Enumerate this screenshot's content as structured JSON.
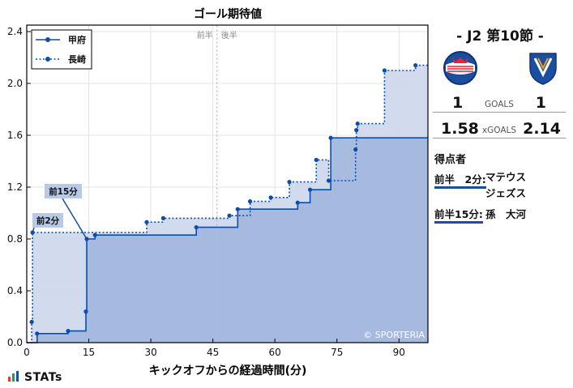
{
  "chart_data": {
    "type": "line",
    "title": "ゴール期待値",
    "xlabel": "キックオフからの経過時間(分)",
    "ylabel": "",
    "xlim": [
      0,
      97
    ],
    "ylim": [
      0,
      2.45
    ],
    "x_ticks": [
      0,
      15,
      30,
      45,
      60,
      75,
      90
    ],
    "y_ticks": [
      0.0,
      0.4,
      0.8,
      1.2,
      1.6,
      2.0,
      2.4
    ],
    "x_tick_labels": [
      "0",
      "15",
      "30",
      "45",
      "60",
      "75",
      "90"
    ],
    "y_tick_labels": [
      "0.0",
      "0.4",
      "0.8",
      "1.2",
      "1.6",
      "2.0",
      "2.4"
    ],
    "halftime": 46,
    "halftime_labels": {
      "first": "前半",
      "second": "後半"
    },
    "grid": true,
    "legend_position": "top-left",
    "watermark": "© SPORTERIA",
    "series": [
      {
        "name": "甲府",
        "style": "solid",
        "color": "#0a4db0",
        "fill": "#a3b8de",
        "points": [
          [
            2.5,
            0.07
          ],
          [
            10,
            0.09
          ],
          [
            14.3,
            0.24
          ],
          [
            14.5,
            0.8
          ],
          [
            16.5,
            0.83
          ],
          [
            41,
            0.89
          ],
          [
            51,
            1.03
          ],
          [
            65.5,
            1.08
          ],
          [
            68.5,
            1.18
          ],
          [
            73.5,
            1.58
          ]
        ]
      },
      {
        "name": "長崎",
        "style": "dotted",
        "color": "#0a4db0",
        "fill": "#cfd9ec",
        "points": [
          [
            1.2,
            0.16
          ],
          [
            1.4,
            0.85
          ],
          [
            29,
            0.93
          ],
          [
            33,
            0.96
          ],
          [
            49,
            0.98
          ],
          [
            54,
            1.09
          ],
          [
            59,
            1.12
          ],
          [
            63.5,
            1.24
          ],
          [
            70,
            1.41
          ],
          [
            73,
            1.25
          ],
          [
            79.5,
            1.49
          ],
          [
            79.7,
            1.64
          ],
          [
            80,
            1.69
          ],
          [
            86.5,
            2.1
          ],
          [
            94,
            2.14
          ]
        ]
      }
    ],
    "annotations": [
      {
        "label": "前2分",
        "x": 1.4,
        "y": 0.85
      },
      {
        "label": "前15分",
        "x": 14.5,
        "y": 0.8
      }
    ]
  },
  "match": {
    "title": "- J2 第10節 -",
    "home_goals": "1",
    "away_goals": "1",
    "goals_label": "GOALS",
    "home_xg": "1.58",
    "away_xg": "2.14",
    "xg_label": "xGOALS"
  },
  "scorers": {
    "title": "得点者",
    "list": [
      {
        "time": "前半　2分:",
        "name": "マテウス\nジェズス"
      },
      {
        "time": "前半15分:",
        "name": "孫　大河"
      }
    ]
  },
  "brand": "STATs",
  "colors": {
    "accent": "#0a4db0",
    "home_fill": "#a3b8de",
    "away_fill": "#cfd9ec",
    "bar1": "#e63a2e",
    "bar2": "#1f9e4a",
    "bar3": "#1a4fa0"
  }
}
